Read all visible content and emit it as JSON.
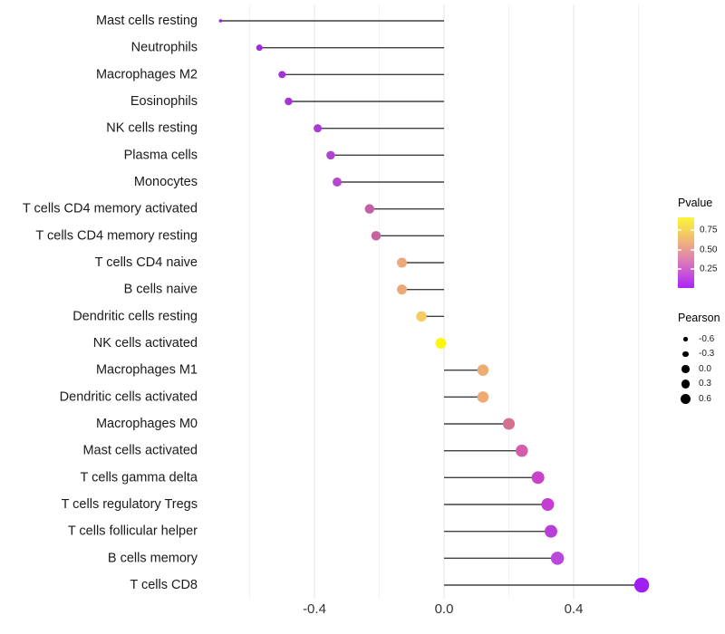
{
  "chart_data": {
    "type": "lollipop",
    "title": "",
    "xlabel": "",
    "ylabel": "",
    "x_axis": {
      "major_ticks": [
        {
          "value": -0.4,
          "label": "-0.4"
        },
        {
          "value": 0.0,
          "label": "0.0"
        },
        {
          "value": 0.4,
          "label": "0.4"
        }
      ],
      "minor_gridlines": [
        -0.6,
        -0.2,
        0.2,
        0.6
      ],
      "range": [
        -0.75,
        0.68
      ]
    },
    "points": [
      {
        "label": "Mast cells resting",
        "pearson": -0.69,
        "dot_color": "#8E23D8",
        "dot_diameter": 3.5
      },
      {
        "label": "Neutrophils",
        "pearson": -0.57,
        "dot_color": "#A129E2",
        "dot_diameter": 7
      },
      {
        "label": "Macrophages M2",
        "pearson": -0.5,
        "dot_color": "#A430DC",
        "dot_diameter": 8
      },
      {
        "label": "Eosinophils",
        "pearson": -0.48,
        "dot_color": "#A635D9",
        "dot_diameter": 8.5
      },
      {
        "label": "NK cells resting",
        "pearson": -0.39,
        "dot_color": "#AA3BD7",
        "dot_diameter": 9
      },
      {
        "label": "Plasma cells",
        "pearson": -0.35,
        "dot_color": "#B045D0",
        "dot_diameter": 9.5
      },
      {
        "label": "Monocytes",
        "pearson": -0.33,
        "dot_color": "#B348CD",
        "dot_diameter": 10
      },
      {
        "label": "T cells CD4 memory activated",
        "pearson": -0.23,
        "dot_color": "#C45FA4",
        "dot_diameter": 10.5
      },
      {
        "label": "T cells CD4 memory resting",
        "pearson": -0.21,
        "dot_color": "#C562A2",
        "dot_diameter": 10.5
      },
      {
        "label": "T cells CD4 naive",
        "pearson": -0.13,
        "dot_color": "#EBA878",
        "dot_diameter": 11
      },
      {
        "label": "B cells naive",
        "pearson": -0.13,
        "dot_color": "#EBA878",
        "dot_diameter": 11
      },
      {
        "label": "Dendritic cells resting",
        "pearson": -0.07,
        "dot_color": "#F4CC62",
        "dot_diameter": 11.5
      },
      {
        "label": "NK cells activated",
        "pearson": -0.01,
        "dot_color": "#FAF70D",
        "dot_diameter": 12
      },
      {
        "label": "Macrophages M1",
        "pearson": 0.12,
        "dot_color": "#EEAB72",
        "dot_diameter": 12.5
      },
      {
        "label": "Dendritic cells activated",
        "pearson": 0.12,
        "dot_color": "#EEAB72",
        "dot_diameter": 12.5
      },
      {
        "label": "Macrophages M0",
        "pearson": 0.2,
        "dot_color": "#D5718F",
        "dot_diameter": 13
      },
      {
        "label": "Mast cells activated",
        "pearson": 0.24,
        "dot_color": "#D55CAC",
        "dot_diameter": 13.5
      },
      {
        "label": "T cells gamma delta",
        "pearson": 0.29,
        "dot_color": "#C843C8",
        "dot_diameter": 14
      },
      {
        "label": "T cells regulatory  Tregs",
        "pearson": 0.32,
        "dot_color": "#C33DD1",
        "dot_diameter": 14
      },
      {
        "label": "T cells follicular helper",
        "pearson": 0.33,
        "dot_color": "#B83EDA",
        "dot_diameter": 14
      },
      {
        "label": "B cells memory",
        "pearson": 0.35,
        "dot_color": "#BB48DC",
        "dot_diameter": 14.5
      },
      {
        "label": "T cells CD8",
        "pearson": 0.61,
        "dot_color": "#A01FF0",
        "dot_diameter": 16.5
      }
    ],
    "legend_pvalue": {
      "title": "Pvalue",
      "tick_labels": [
        "0.75",
        "0.50",
        "0.25"
      ],
      "gradient_top_to_bottom": [
        "#FBF63C",
        "#F5D05C",
        "#ECA787",
        "#DC7FB4",
        "#C652D9",
        "#AB24F4"
      ]
    },
    "legend_pearson": {
      "title": "Pearson",
      "items": [
        {
          "label": "-0.6",
          "diameter": 4.5
        },
        {
          "label": "-0.3",
          "diameter": 6.5
        },
        {
          "label": "0.0",
          "diameter": 8.5
        },
        {
          "label": "0.3",
          "diameter": 9.5
        },
        {
          "label": "0.6",
          "diameter": 11
        }
      ]
    },
    "style": {
      "stick_color": "#404040",
      "major_gridline_color": "#e4e4e4",
      "minor_gridline_color": "#f2f2f2",
      "axis_text_color": "#333333",
      "label_text_color": "#1a1a1a"
    }
  }
}
